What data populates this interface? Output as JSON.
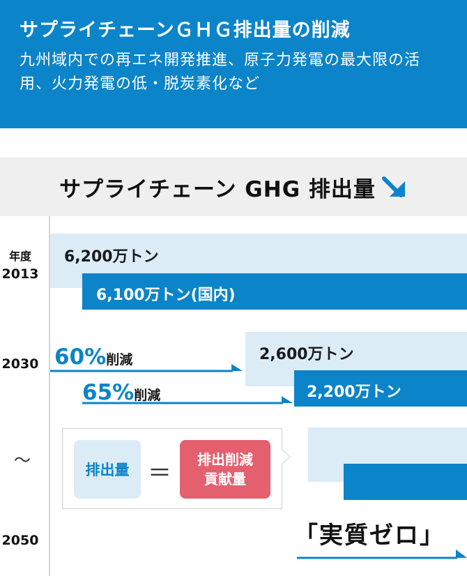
{
  "header": {
    "title": "サプライチェーンＧＨＧ排出量の削減",
    "subtitle": "九州域内での再エネ開発推進、原子力発電の最大限の活用、火力発電の低・脱炭素化など"
  },
  "chart": {
    "title": "サプライチェーン GHG 排出量",
    "arrow_icon": "down-right-arrow-icon"
  },
  "years": {
    "label": "年度",
    "y2013": "2013",
    "y2030": "2030",
    "y2050": "2050",
    "tilde": "～"
  },
  "reductions": {
    "r60_pct": "60%",
    "r60_label": "削減",
    "r65_pct": "65%",
    "r65_label": "削減"
  },
  "legend": {
    "emissions": "排出量",
    "equals": "＝",
    "contribution": "排出削減貢献量"
  },
  "zero": "「実質ゼロ」",
  "colors": {
    "header_bg": "#0b84c9",
    "bar_dark": "#0b84c9",
    "bar_light": "#dcecf7",
    "contribution_chip": "#e4606e"
  },
  "chart_data": {
    "type": "bar",
    "unit": "万トン",
    "series": [
      {
        "year": "2013",
        "value": 6200,
        "label": "6,200万トン"
      },
      {
        "year": "2013",
        "value": 6100,
        "label": "6,100万トン(国内)"
      },
      {
        "year": "2030",
        "value": 2600,
        "label": "2,600万トン",
        "reduction": "60%削減"
      },
      {
        "year": "2030",
        "value": 2200,
        "label": "2,200万トン",
        "reduction": "65%削減"
      },
      {
        "year": "2050",
        "label": "「実質ゼロ」"
      }
    ]
  }
}
